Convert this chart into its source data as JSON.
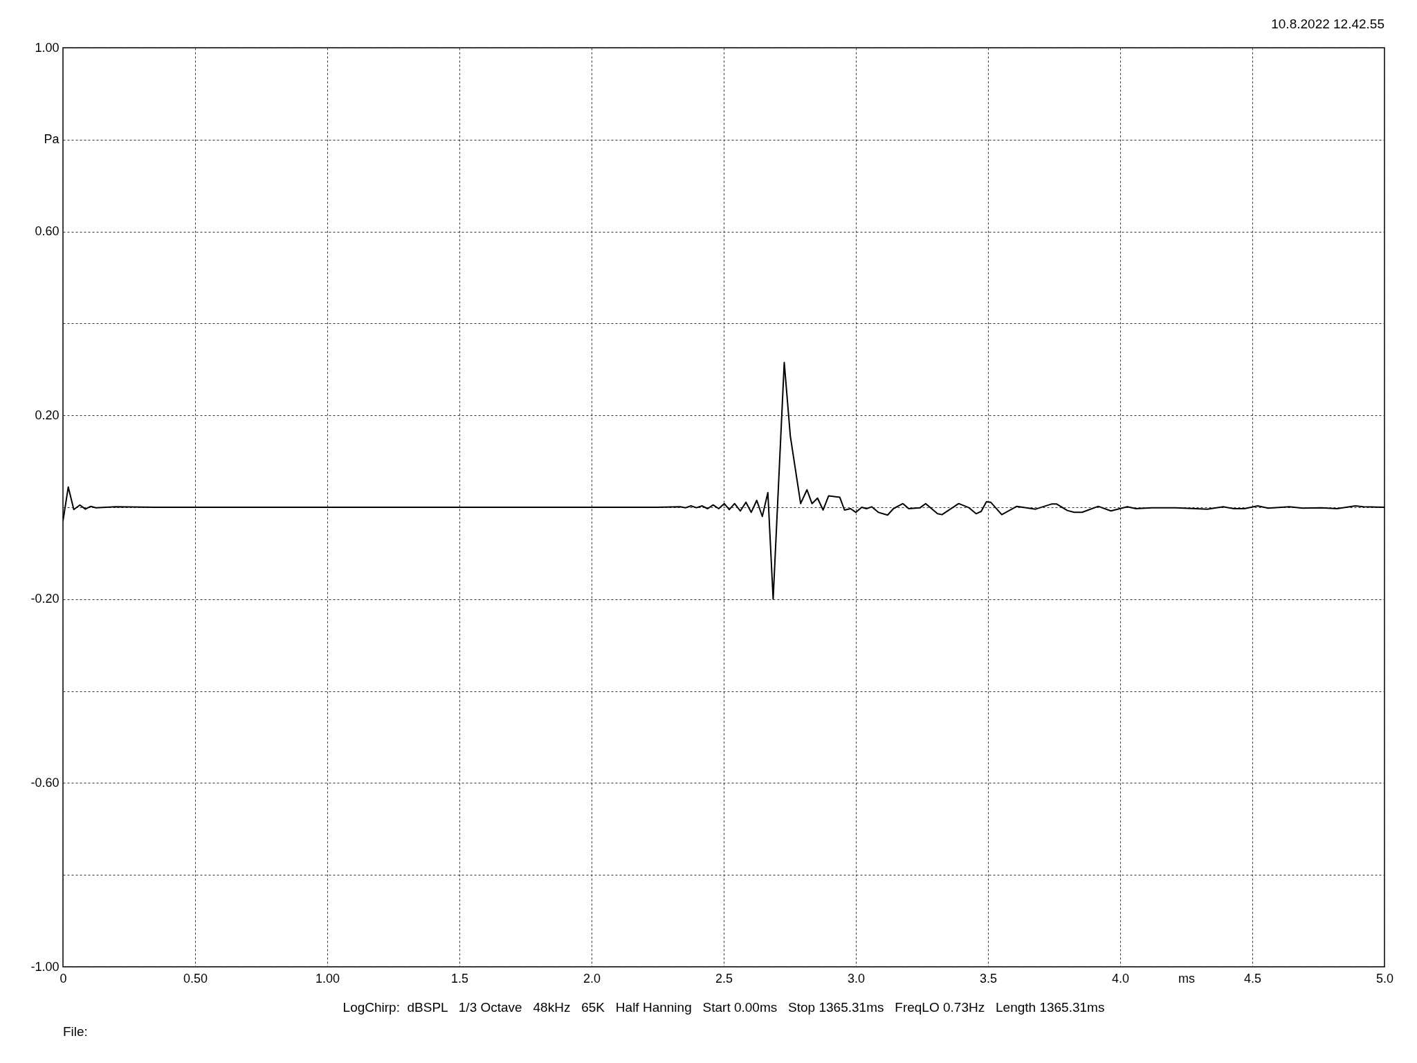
{
  "chart_data": {
    "type": "line",
    "xlabel": "ms",
    "ylabel": "Pa",
    "annotations": [
      "10.8.2022 12.42.55",
      "LogChirp:  dBSPL   1/3 Octave   48kHz   65K   Half Hanning   Start 0.00ms   Stop 1365.31ms   FreqLO 0.73Hz   Length 1365.31ms",
      "File:"
    ],
    "xlim": [
      0,
      5
    ],
    "ylim": [
      -1,
      1
    ],
    "xticks": [
      {
        "value": 0,
        "label": "0"
      },
      {
        "value": 0.5,
        "label": "0.50"
      },
      {
        "value": 1,
        "label": "1.00"
      },
      1.5,
      {
        "value": 2,
        "label": "2.0"
      },
      2.5,
      {
        "value": 3,
        "label": "3.0"
      },
      3.5,
      {
        "value": 4,
        "label": "4.0"
      },
      4.5,
      {
        "value": 5,
        "label": "5.0"
      }
    ],
    "yticks": [
      {
        "value": -1,
        "label": "-1.00"
      },
      {
        "value": -0.8,
        "label": null
      },
      {
        "value": -0.6,
        "label": "-0.60"
      },
      {
        "value": -0.4,
        "label": null
      },
      {
        "value": -0.2,
        "label": "-0.20"
      },
      {
        "value": 0,
        "label": null
      },
      {
        "value": 0.2,
        "label": "0.20"
      },
      {
        "value": 0.4,
        "label": null
      },
      {
        "value": 0.6,
        "label": "0.60"
      },
      {
        "value": 0.8,
        "label": null
      },
      {
        "value": 1,
        "label": "1.00"
      }
    ],
    "grid": true,
    "line_style": "solid",
    "marker": "none",
    "series": [
      {
        "color": "#000000",
        "x": [
          0,
          0.02,
          0.041,
          0.064,
          0.085,
          0.105,
          0.125,
          0.2,
          0.35,
          1.0,
          2.0,
          2.248,
          2.335,
          2.356,
          2.376,
          2.397,
          2.418,
          2.439,
          2.46,
          2.481,
          2.502,
          2.521,
          2.541,
          2.563,
          2.584,
          2.604,
          2.625,
          2.646,
          2.667,
          2.687,
          2.729,
          2.752,
          2.791,
          2.815,
          2.834,
          2.855,
          2.876,
          2.897,
          2.939,
          2.957,
          2.98,
          3.0,
          3.022,
          3.04,
          3.06,
          3.085,
          3.12,
          3.142,
          3.178,
          3.2,
          3.243,
          3.264,
          3.309,
          3.326,
          3.389,
          3.428,
          3.455,
          3.474,
          3.494,
          3.51,
          3.552,
          3.609,
          3.68,
          3.74,
          3.76,
          3.8,
          3.826,
          3.856,
          3.917,
          3.965,
          4.027,
          4.06,
          4.119,
          4.21,
          4.33,
          4.39,
          4.43,
          4.47,
          4.52,
          4.56,
          4.64,
          4.69,
          4.76,
          4.82,
          4.89,
          4.92,
          5.0
        ],
        "values": [
          -0.03,
          0.044,
          -0.005,
          0.005,
          -0.004,
          0.002,
          -0.001,
          0.001,
          0,
          0,
          0,
          0,
          0.001,
          -0.001,
          0.003,
          -0.001,
          0.003,
          -0.003,
          0.005,
          -0.003,
          0.008,
          -0.005,
          0.008,
          -0.008,
          0.011,
          -0.011,
          0.015,
          -0.02,
          0.032,
          -0.2,
          0.315,
          0.155,
          0.008,
          0.038,
          0.008,
          0.02,
          -0.006,
          0.025,
          0.022,
          -0.006,
          -0.003,
          -0.011,
          0,
          -0.003,
          0.001,
          -0.011,
          -0.017,
          -0.003,
          0.008,
          -0.003,
          -0.001,
          0.008,
          -0.014,
          -0.016,
          0.008,
          -0.001,
          -0.014,
          -0.009,
          0.012,
          0.011,
          -0.016,
          0.002,
          -0.004,
          0.007,
          0.007,
          -0.007,
          -0.011,
          -0.011,
          0.002,
          -0.008,
          0.001,
          -0.003,
          -0.001,
          -0.001,
          -0.004,
          0.001,
          -0.003,
          -0.003,
          0.003,
          -0.002,
          0.001,
          -0.002,
          -0.001,
          -0.003,
          0.003,
          0.001,
          0
        ]
      }
    ]
  }
}
